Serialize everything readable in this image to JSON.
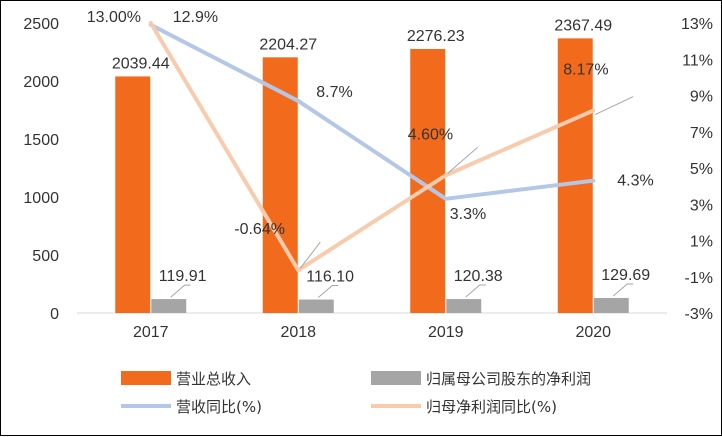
{
  "chart_data": {
    "type": "bar",
    "categories": [
      "2017",
      "2018",
      "2019",
      "2020"
    ],
    "bar_series": [
      {
        "name": "营业总收入",
        "values": [
          2039.44,
          2204.27,
          2276.23,
          2367.49
        ],
        "labels": [
          "2039.44",
          "2204.27",
          "2276.23",
          "2367.49"
        ],
        "color": "#F26B1D"
      },
      {
        "name": "归属母公司股东的净利润",
        "values": [
          119.91,
          116.1,
          120.38,
          129.69
        ],
        "labels": [
          "119.91",
          "116.10",
          "120.38",
          "129.69"
        ],
        "color": "#A5A5A5"
      }
    ],
    "line_series": [
      {
        "name": "营收同比(%)",
        "values": [
          12.9,
          8.7,
          3.3,
          4.3
        ],
        "labels": [
          "12.9%",
          "8.7%",
          "3.3%",
          "4.3%"
        ],
        "color": "#B4C7E7"
      },
      {
        "name": "归母净利润同比(%)",
        "values": [
          13.0,
          -0.64,
          4.6,
          8.17
        ],
        "labels": [
          "13.00%",
          "-0.64%",
          "4.60%",
          "8.17%"
        ],
        "color": "#F8CBAD"
      }
    ],
    "y_left": {
      "min": 0,
      "max": 2500,
      "ticks": [
        "0",
        "500",
        "1000",
        "1500",
        "2000",
        "2500"
      ]
    },
    "y_right": {
      "min": -3,
      "max": 13,
      "ticks": [
        "-3%",
        "-1%",
        "1%",
        "3%",
        "5%",
        "7%",
        "9%",
        "11%",
        "13%"
      ]
    },
    "legend_position": "bottom",
    "grid": false,
    "title": "",
    "xlabel": "",
    "ylabel": ""
  }
}
